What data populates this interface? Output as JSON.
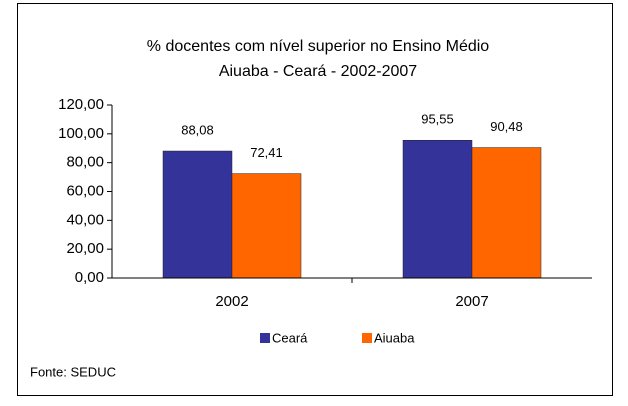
{
  "chart_data": {
    "type": "bar",
    "title": "% docentes com nível superior no Ensino Médio",
    "subtitle": "Aiuaba - Ceará - 2002-2007",
    "categories": [
      "2002",
      "2007"
    ],
    "series": [
      {
        "name": "Ceará",
        "color": "#333399",
        "values": [
          88.08,
          95.55
        ],
        "value_labels": [
          "88,08",
          "95,55"
        ]
      },
      {
        "name": "Aiuaba",
        "color": "#FF6600",
        "values": [
          72.41,
          90.48
        ],
        "value_labels": [
          "72,41",
          "90,48"
        ]
      }
    ],
    "ylim": [
      0,
      120
    ],
    "yticks": [
      {
        "value": 0,
        "label": "0,00"
      },
      {
        "value": 20,
        "label": "20,00"
      },
      {
        "value": 40,
        "label": "40,00"
      },
      {
        "value": 60,
        "label": "60,00"
      },
      {
        "value": 80,
        "label": "80,00"
      },
      {
        "value": 100,
        "label": "100,00"
      },
      {
        "value": 120,
        "label": "120,00"
      }
    ],
    "legend": "bottom",
    "source": "Fonte: SEDUC"
  }
}
